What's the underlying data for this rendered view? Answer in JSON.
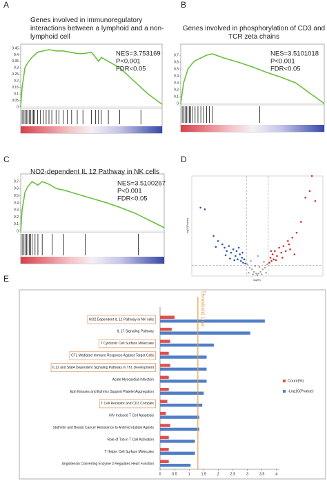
{
  "chart_data": [
    {
      "type": "line",
      "panel": "A",
      "title": "Genes involved in immunoregulatory interactions between a lymphoid and a non-lymphoid cell",
      "x": [
        0,
        1,
        3,
        5,
        8,
        12,
        16,
        20,
        25,
        30,
        35,
        40,
        45,
        50,
        53,
        55,
        57,
        62,
        70,
        80,
        90,
        100
      ],
      "values": [
        0,
        0.15,
        0.3,
        0.34,
        0.38,
        0.42,
        0.43,
        0.44,
        0.43,
        0.43,
        0.42,
        0.41,
        0.41,
        0.42,
        0.38,
        0.35,
        0.38,
        0.35,
        0.3,
        0.2,
        0.1,
        0.02
      ],
      "color": "#6abf3a",
      "hits": [
        1,
        2,
        3,
        4,
        5,
        6,
        7,
        8,
        9,
        10,
        12,
        14,
        16,
        18,
        20,
        22,
        25,
        27,
        30,
        33,
        36,
        40,
        44,
        50,
        53,
        55,
        57,
        62,
        70,
        85
      ],
      "xlim": [
        0,
        100
      ],
      "ylim": [
        0,
        0.45
      ],
      "yticks": [
        0,
        0.05,
        0.1,
        0.15,
        0.2,
        0.25,
        0.3,
        0.35,
        0.4,
        0.45
      ],
      "annotations": [
        "NES=3.753169",
        "P<0.001",
        "FDR<0.05"
      ]
    },
    {
      "type": "line",
      "panel": "B",
      "title": "Genes involved in phosphorylation of CD3 and TCR zeta chains",
      "x": [
        0,
        2,
        5,
        8,
        10,
        14,
        18,
        22,
        30,
        40,
        50,
        60,
        70,
        80,
        90,
        100
      ],
      "values": [
        0,
        0.3,
        0.5,
        0.58,
        0.62,
        0.66,
        0.7,
        0.72,
        0.66,
        0.6,
        0.53,
        0.45,
        0.38,
        0.3,
        0.15,
        0
      ],
      "color": "#6abf3a",
      "hits": [
        1,
        2,
        3,
        4,
        5,
        6,
        7,
        8,
        10,
        12,
        14,
        16,
        18,
        20,
        22,
        55
      ],
      "xlim": [
        0,
        100
      ],
      "ylim": [
        0,
        0.8
      ],
      "yticks": [
        0,
        0.1,
        0.2,
        0.3,
        0.4,
        0.5,
        0.6,
        0.7
      ],
      "annotations": [
        "NES=3.5101018",
        "P<0.001",
        "FDR<0.05"
      ]
    },
    {
      "type": "line",
      "panel": "C",
      "title": "NO2-dependent IL 12 Pathway in NK cells",
      "x": [
        0,
        1,
        3,
        5,
        8,
        12,
        15,
        20,
        25,
        30,
        35,
        40,
        50,
        60,
        70,
        80,
        90,
        100
      ],
      "values": [
        0,
        0.3,
        0.55,
        0.63,
        0.7,
        0.65,
        0.7,
        0.66,
        0.6,
        0.58,
        0.55,
        0.52,
        0.46,
        0.4,
        0.33,
        0.25,
        0.15,
        0.05
      ],
      "color": "#6abf3a",
      "hits": [
        1,
        2,
        3,
        4,
        5,
        6,
        7,
        8,
        10,
        12,
        15,
        22,
        30,
        45,
        82
      ],
      "xlim": [
        0,
        100
      ],
      "ylim": [
        0,
        0.75
      ],
      "yticks": [
        0,
        0.1,
        0.2,
        0.3,
        0.4,
        0.5,
        0.6,
        0.7
      ],
      "annotations": [
        "NES=3.5100267",
        "P<0.001",
        "FDR<0.05"
      ]
    },
    {
      "type": "scatter",
      "panel": "D",
      "xlabel": "log2FC",
      "ylabel": "-log10(Pvalue)",
      "xlim": [
        -6,
        6
      ],
      "ylim": [
        0,
        12
      ],
      "xlines": [
        -1,
        1
      ],
      "ylines": [
        1.3
      ],
      "series": [
        {
          "color": "#2855b0",
          "x": [
            -5.2,
            -4.8,
            -4.0,
            -3.6,
            -3.2,
            -3.0,
            -2.8,
            -2.6,
            -2.4,
            -2.2,
            -2.0,
            -1.9,
            -1.8,
            -1.6,
            -1.5,
            -1.4,
            -1.3,
            -1.2,
            -1.1,
            -3.8,
            -2.5,
            -1.7,
            -2.9,
            -2.1,
            -1.35
          ],
          "values": [
            8.2,
            8.0,
            4.8,
            4.2,
            3.8,
            3.4,
            3.0,
            3.6,
            2.8,
            3.2,
            2.4,
            3.0,
            2.0,
            2.6,
            1.8,
            2.2,
            1.6,
            2.0,
            1.5,
            3.5,
            2.1,
            3.4,
            2.5,
            1.9,
            2.8
          ]
        },
        {
          "color": "#d42a2a",
          "x": [
            1.1,
            1.2,
            1.3,
            1.4,
            1.5,
            1.6,
            1.8,
            2.0,
            2.2,
            2.4,
            2.6,
            2.8,
            3.0,
            3.2,
            3.6,
            4.0,
            4.4,
            4.8,
            5.0,
            5.3,
            1.7,
            2.3,
            2.9,
            3.4,
            1.25
          ],
          "values": [
            1.6,
            2.2,
            1.8,
            2.6,
            2.0,
            3.0,
            2.4,
            3.4,
            2.8,
            3.6,
            3.0,
            4.2,
            3.2,
            4.6,
            5.2,
            6.5,
            9.4,
            10.2,
            12.0,
            9.0,
            1.9,
            2.2,
            3.8,
            2.6,
            3.0
          ]
        },
        {
          "color": "#a8a8a8",
          "x": [
            -0.9,
            -0.7,
            -0.5,
            -0.3,
            -0.1,
            0.1,
            0.3,
            0.5,
            0.7,
            0.9,
            -0.8,
            -0.4,
            0.0,
            0.4,
            0.8,
            -0.6,
            -0.2,
            0.2,
            0.6,
            0.05
          ],
          "values": [
            1.4,
            1.0,
            0.8,
            0.5,
            0.3,
            0.3,
            0.5,
            0.8,
            1.0,
            1.4,
            0.4,
            0.2,
            0.1,
            0.2,
            0.4,
            1.8,
            1.2,
            1.1,
            1.7,
            2.4
          ]
        }
      ]
    },
    {
      "type": "bar",
      "panel": "E",
      "orientation": "horizontal",
      "categories": [
        "NO2 Dependent IL 12 Pathway in NK cells",
        "IL 17 Signaling Pathway",
        "T Cytotoxic Cell Surface Molecules",
        "CTL Mediated Immune Response Against Target Cells",
        "IL12 and Stat4 Dependent Signaling Pathway in Th1 Development",
        "Acute Myocardial Infarction",
        "Eph Kinases and Ephrins Support Platelet Aggregation",
        "T Cell Receptor and CD3 Complex",
        "HIV Induced T Cell Apoptosis",
        "Stathmin and Breast Cancer Resistance to Antimicrotubule Agents",
        "Role of Tob in T Cell Activation",
        "T Helper Cell Surface Molecules",
        "Angiotensin Converting Enzyme 2 Regulates Heart Function"
      ],
      "highlighted": [
        0,
        2,
        3,
        4,
        7
      ],
      "series": [
        {
          "name": "Count(%)",
          "color": "#e0504a",
          "values": [
            0.5,
            0.4,
            0.35,
            0.3,
            0.35,
            0.3,
            0.3,
            0.25,
            0.2,
            0.35,
            0.3,
            0.3,
            0.3
          ]
        },
        {
          "name": "-Log10(Pvalue)",
          "color": "#4f7fc8",
          "values": [
            3.6,
            3.1,
            1.85,
            1.6,
            1.6,
            1.6,
            1.5,
            1.45,
            1.35,
            1.35,
            1.2,
            1.2,
            1.05
          ]
        }
      ],
      "xlim": [
        0,
        4.1
      ],
      "xticks": [
        0,
        0.5,
        1,
        1.5,
        2,
        2.5,
        3,
        3.5,
        4
      ],
      "threshold": 1.3,
      "threshold_label": "Threshold Line",
      "threshold_color": "#e8a04a"
    }
  ]
}
